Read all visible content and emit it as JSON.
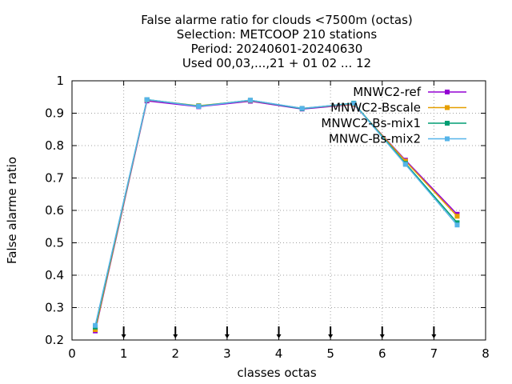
{
  "chart_data": {
    "type": "line",
    "title_lines": [
      "False alarme ratio  for clouds <7500m (octas)",
      "Selection: METCOOP    210 stations",
      "Period: 20240601-20240630",
      "Used 00,03,...,21 + 01 02 ... 12"
    ],
    "xlabel": "classes octas",
    "ylabel": "False alarme ratio",
    "xlim": [
      0,
      8
    ],
    "ylim": [
      0.2,
      1.0
    ],
    "xticks": [
      "0",
      "1",
      "2",
      "3",
      "4",
      "5",
      "6",
      "7",
      "8"
    ],
    "yticks": [
      "0.2",
      "0.3",
      "0.4",
      "0.5",
      "0.6",
      "0.7",
      "0.8",
      "0.9",
      "1"
    ],
    "grid": true,
    "legend_position": "top-right",
    "x": [
      0.45,
      1.45,
      2.45,
      3.45,
      4.45,
      5.45,
      6.45,
      7.45
    ],
    "series": [
      {
        "name": "MNWC2-ref",
        "color": "#9400d3",
        "values": [
          0.228,
          0.938,
          0.92,
          0.937,
          0.913,
          0.927,
          0.755,
          0.588
        ]
      },
      {
        "name": "MNWC2-Bscale",
        "color": "#e69f00",
        "values": [
          0.232,
          0.941,
          0.923,
          0.939,
          0.915,
          0.928,
          0.752,
          0.582
        ]
      },
      {
        "name": "MNWC2-Bs-mix1",
        "color": "#009e73",
        "values": [
          0.24,
          0.942,
          0.922,
          0.94,
          0.914,
          0.931,
          0.745,
          0.562
        ]
      },
      {
        "name": "MNWC-Bs-mix2",
        "color": "#56b4e9",
        "values": [
          0.245,
          0.942,
          0.921,
          0.94,
          0.915,
          0.93,
          0.742,
          0.555
        ]
      }
    ],
    "lower_marks_x": [
      1,
      2,
      3,
      4,
      5,
      6,
      7
    ]
  }
}
